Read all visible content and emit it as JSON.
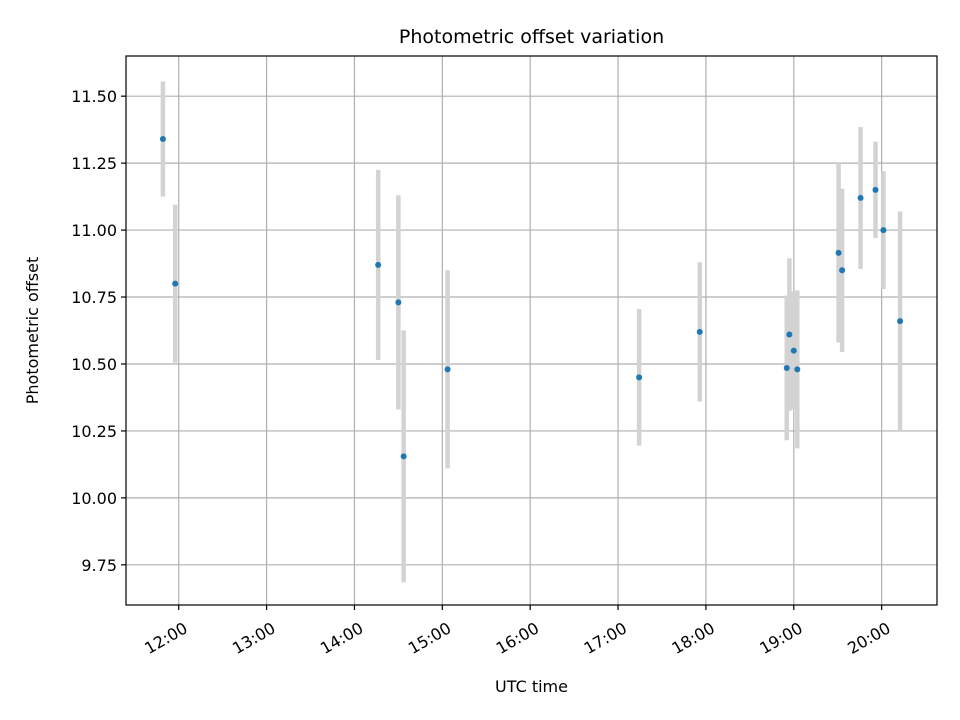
{
  "chart_data": {
    "type": "scatter",
    "title": "Photometric offset variation",
    "xlabel": "UTC time",
    "ylabel": "Photometric offset",
    "xlim": [
      11.4,
      20.63
    ],
    "ylim": [
      9.6,
      11.65
    ],
    "grid": true,
    "x_ticks": [
      {
        "value": 12,
        "label": "12:00"
      },
      {
        "value": 13,
        "label": "13:00"
      },
      {
        "value": 14,
        "label": "14:00"
      },
      {
        "value": 15,
        "label": "15:00"
      },
      {
        "value": 16,
        "label": "16:00"
      },
      {
        "value": 17,
        "label": "17:00"
      },
      {
        "value": 18,
        "label": "18:00"
      },
      {
        "value": 19,
        "label": "19:00"
      },
      {
        "value": 20,
        "label": "20:00"
      }
    ],
    "y_ticks": [
      {
        "value": 9.75,
        "label": "9.75"
      },
      {
        "value": 10.0,
        "label": "10.00"
      },
      {
        "value": 10.25,
        "label": "10.25"
      },
      {
        "value": 10.5,
        "label": "10.50"
      },
      {
        "value": 10.75,
        "label": "10.75"
      },
      {
        "value": 11.0,
        "label": "11.00"
      },
      {
        "value": 11.25,
        "label": "11.25"
      },
      {
        "value": 11.5,
        "label": "11.50"
      }
    ],
    "series": [
      {
        "name": "offset",
        "color": "#1f77b4",
        "errorbar_color": "#d3d3d3",
        "points": [
          {
            "x": 11.82,
            "y": 11.34,
            "yerr": 0.215
          },
          {
            "x": 11.96,
            "y": 10.8,
            "yerr": 0.295
          },
          {
            "x": 14.27,
            "y": 10.87,
            "yerr": 0.355
          },
          {
            "x": 14.5,
            "y": 10.73,
            "yerr": 0.4
          },
          {
            "x": 14.56,
            "y": 10.155,
            "yerr": 0.47
          },
          {
            "x": 15.06,
            "y": 10.48,
            "yerr": 0.37
          },
          {
            "x": 17.24,
            "y": 10.45,
            "yerr": 0.255
          },
          {
            "x": 17.93,
            "y": 10.62,
            "yerr": 0.26
          },
          {
            "x": 18.92,
            "y": 10.485,
            "yerr": 0.27
          },
          {
            "x": 18.95,
            "y": 10.61,
            "yerr": 0.285
          },
          {
            "x": 19.0,
            "y": 10.55,
            "yerr": 0.22
          },
          {
            "x": 19.04,
            "y": 10.48,
            "yerr": 0.295
          },
          {
            "x": 19.51,
            "y": 10.915,
            "yerr": 0.335
          },
          {
            "x": 19.55,
            "y": 10.85,
            "yerr": 0.305
          },
          {
            "x": 19.76,
            "y": 11.12,
            "yerr": 0.265
          },
          {
            "x": 19.93,
            "y": 11.15,
            "yerr": 0.18
          },
          {
            "x": 20.02,
            "y": 11.0,
            "yerr": 0.22
          },
          {
            "x": 20.21,
            "y": 10.66,
            "yerr": 0.41
          }
        ]
      }
    ]
  }
}
